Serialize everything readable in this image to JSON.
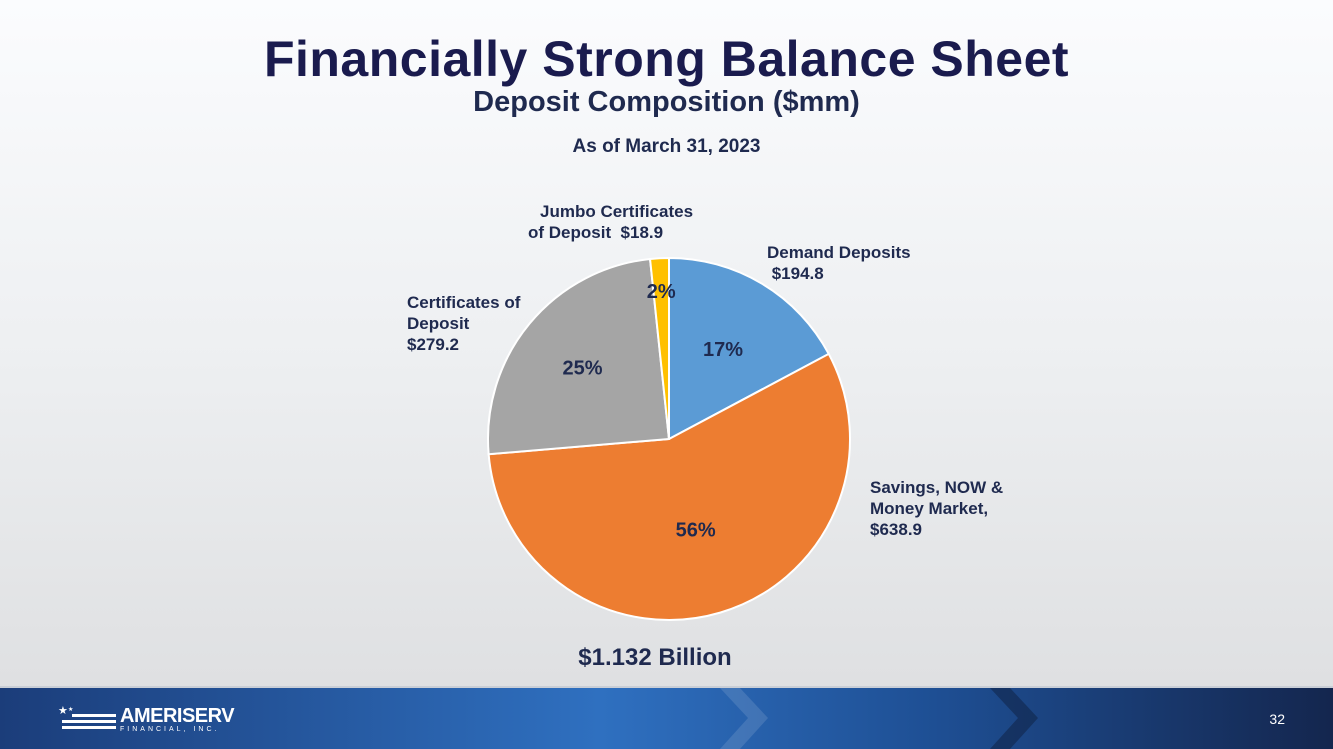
{
  "slide": {
    "title": "Financially Strong Balance Sheet",
    "page_number": "32"
  },
  "footer": {
    "logo_name": "AMERISERV",
    "logo_sub": "FINANCIAL, INC."
  },
  "chart_data": {
    "type": "pie",
    "title": "Deposit Composition ($mm)",
    "subtitle": "As of March 31, 2023",
    "total_label": "$1.132 Billion",
    "start_angle_deg": 0,
    "direction": "clockwise",
    "slices": [
      {
        "name": "Demand Deposits",
        "value": 194.8,
        "pct_label": "17%",
        "color": "#5b9bd5",
        "label_lines": [
          "Demand Deposits",
          " $194.8"
        ]
      },
      {
        "name": "Savings, NOW & Money Market",
        "value": 638.9,
        "pct_label": "56%",
        "color": "#ed7d31",
        "label_lines": [
          "Savings, NOW &",
          "Money Market,",
          "$638.9"
        ]
      },
      {
        "name": "Certificates of Deposit",
        "value": 279.2,
        "pct_label": "25%",
        "color": "#a5a5a5",
        "label_lines": [
          "Certificates of",
          "Deposit",
          "$279.2"
        ]
      },
      {
        "name": "Jumbo Certificates of Deposit",
        "value": 18.9,
        "pct_label": "2%",
        "color": "#ffc000",
        "label_lines": [
          "Jumbo Certificates",
          "of Deposit  $18.9"
        ]
      }
    ]
  }
}
